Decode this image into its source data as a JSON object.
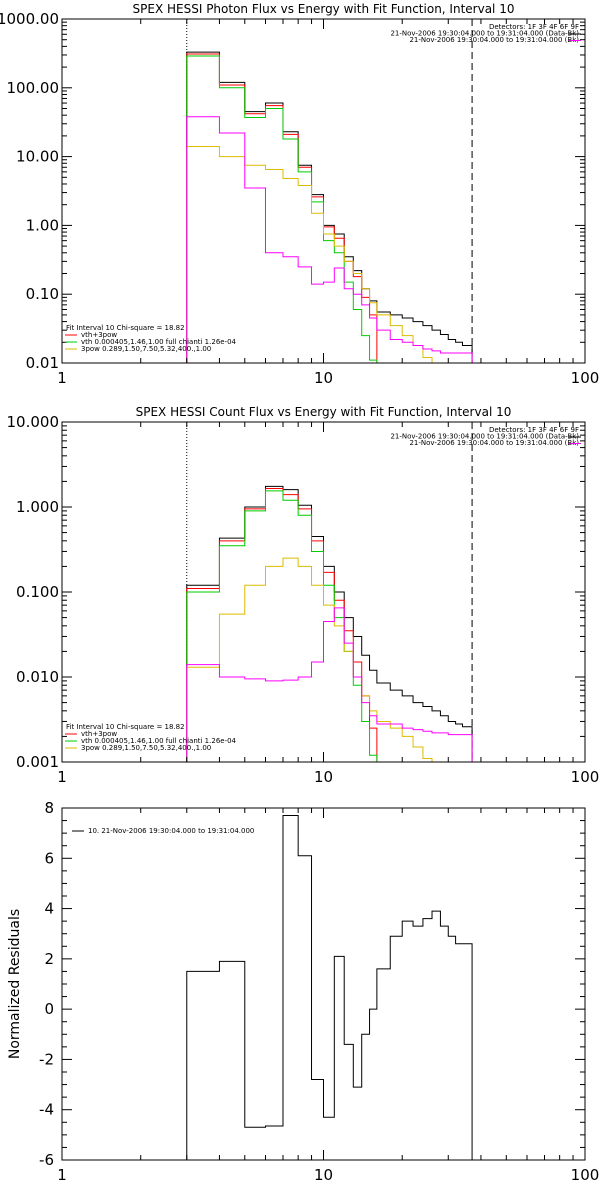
{
  "chart_data": [
    {
      "type": "line",
      "title": "SPEX HESSI Photon Flux vs Energy with Fit Function, Interval 10",
      "xlabel": "",
      "ylabel": "",
      "xscale": "log",
      "yscale": "log",
      "xlim": [
        1,
        100
      ],
      "ylim": [
        0.01,
        1000
      ],
      "x_tick_labels": [
        "1",
        "10",
        "100"
      ],
      "y_tick_labels": [
        "0.01",
        "0.10",
        "1.00",
        "10.00",
        "100.00",
        "1000.00"
      ],
      "vlines": [
        {
          "x": 3,
          "style": "dotted"
        },
        {
          "x": 37,
          "style": "dashed"
        }
      ],
      "header_lines": [
        "Detectors: 1F 3F 4F 6F 9F",
        "21-Nov-2006 19:30:04.000 to 19:31:04.000 (Data-Bk)",
        "21-Nov-2006 19:30:04.000 to 19:31:04.000 (Bk)"
      ],
      "legend_lines": [
        "Fit Interval 10   Chi-square = 18.82",
        "vth+3pow",
        "vth 0.000405,1.46,1.00   full chianti 1.26e-04",
        "3pow 0.289,1.50,7.50,5.32,400.,1.00"
      ],
      "series": [
        {
          "name": "",
          "color": "#000000",
          "edges": [
            3,
            4,
            5,
            6,
            7,
            8,
            9,
            10,
            11,
            12,
            13,
            14,
            15,
            16,
            18,
            20,
            22,
            24,
            26,
            28,
            30,
            32,
            34,
            37
          ],
          "values": [
            330,
            120,
            45,
            60,
            23,
            7.5,
            2.8,
            1.0,
            0.75,
            0.35,
            0.22,
            0.12,
            0.08,
            0.055,
            0.05,
            0.045,
            0.04,
            0.035,
            0.03,
            0.026,
            0.022,
            0.02,
            0.018
          ]
        },
        {
          "name": "",
          "color": "#ff0000",
          "edges": [
            3,
            4,
            5,
            6,
            7,
            8,
            9,
            10,
            11,
            12,
            13,
            14,
            15,
            16
          ],
          "values": [
            310,
            110,
            42,
            55,
            21,
            7.0,
            2.6,
            0.95,
            0.65,
            0.3,
            0.18,
            0.09,
            0.05
          ]
        },
        {
          "name": "",
          "color": "#00cc00",
          "edges": [
            3,
            4,
            5,
            6,
            7,
            8,
            9,
            10,
            11,
            12,
            13,
            14,
            15,
            16
          ],
          "values": [
            290,
            100,
            37,
            50,
            18,
            6.0,
            2.2,
            0.6,
            0.4,
            0.15,
            0.06,
            0.025,
            0.011
          ]
        },
        {
          "name": "",
          "color": "#ddbb00",
          "edges": [
            3,
            4,
            5,
            6,
            7,
            8,
            9,
            10,
            11,
            12,
            13,
            14,
            15,
            16,
            18,
            20,
            22,
            24,
            26
          ],
          "values": [
            14,
            10,
            7.5,
            6.5,
            4.8,
            3.8,
            1.5,
            0.75,
            0.5,
            0.3,
            0.2,
            0.12,
            0.075,
            0.05,
            0.035,
            0.025,
            0.018,
            0.012
          ]
        },
        {
          "name": "",
          "color": "#ff00ff",
          "edges": [
            3,
            4,
            5,
            6,
            7,
            8,
            9,
            10,
            11,
            12,
            13,
            14,
            15,
            16,
            18,
            20,
            22,
            24,
            26,
            28,
            30,
            32,
            34,
            37
          ],
          "values": [
            38,
            22,
            3.5,
            0.4,
            0.35,
            0.25,
            0.14,
            0.15,
            0.24,
            0.12,
            0.1,
            0.07,
            0.045,
            0.03,
            0.022,
            0.02,
            0.018,
            0.016,
            0.015,
            0.014,
            0.014,
            0.014,
            0.014
          ]
        }
      ]
    },
    {
      "type": "line",
      "title": "SPEX HESSI Count Flux vs Energy with Fit Function, Interval 10",
      "xlabel": "",
      "ylabel": "",
      "xscale": "log",
      "yscale": "log",
      "xlim": [
        1,
        100
      ],
      "ylim": [
        0.001,
        10
      ],
      "x_tick_labels": [
        "1",
        "10",
        "100"
      ],
      "y_tick_labels": [
        "0.001",
        "0.010",
        "0.100",
        "1.000",
        "10.000"
      ],
      "vlines": [
        {
          "x": 3,
          "style": "dotted"
        },
        {
          "x": 37,
          "style": "dashed"
        }
      ],
      "header_lines": [
        "Detectors: 1F 3F 4F 6F 9F",
        "21-Nov-2006 19:30:04.000 to 19:31:04.000 (Data-Bk)",
        "21-Nov-2006 19:30:04.000 to 19:31:04.000 (Bk)"
      ],
      "legend_lines": [
        "Fit Interval 10   Chi-square = 18.82",
        "vth+3pow",
        "vth 0.000405,1.46,1.00   full chianti 1.26e-04",
        "3pow 0.289,1.50,7.50,5.32,400.,1.00"
      ],
      "series": [
        {
          "name": "",
          "color": "#000000",
          "edges": [
            3,
            4,
            5,
            6,
            7,
            8,
            9,
            10,
            11,
            12,
            13,
            14,
            15,
            16,
            18,
            20,
            22,
            24,
            26,
            28,
            30,
            32,
            34,
            37
          ],
          "values": [
            0.12,
            0.43,
            1.0,
            1.75,
            1.6,
            1.05,
            0.45,
            0.2,
            0.1,
            0.05,
            0.03,
            0.018,
            0.012,
            0.0085,
            0.007,
            0.006,
            0.005,
            0.0045,
            0.004,
            0.0035,
            0.003,
            0.0028,
            0.0026
          ]
        },
        {
          "name": "",
          "color": "#ff0000",
          "edges": [
            3,
            4,
            5,
            6,
            7,
            8,
            9,
            10,
            11,
            12,
            13,
            14,
            15,
            16
          ],
          "values": [
            0.11,
            0.4,
            0.95,
            1.65,
            1.4,
            0.95,
            0.4,
            0.17,
            0.08,
            0.035,
            0.015,
            0.006,
            0.0025
          ]
        },
        {
          "name": "",
          "color": "#00cc00",
          "edges": [
            3,
            4,
            5,
            6,
            7,
            8,
            9,
            10,
            11,
            12,
            13,
            14,
            15,
            16
          ],
          "values": [
            0.1,
            0.35,
            0.9,
            1.55,
            1.2,
            0.8,
            0.3,
            0.12,
            0.05,
            0.02,
            0.008,
            0.003,
            0.0012
          ]
        },
        {
          "name": "",
          "color": "#ddbb00",
          "edges": [
            3,
            4,
            5,
            6,
            7,
            8,
            9,
            10,
            11,
            12,
            13,
            14,
            15,
            16,
            18,
            20,
            22,
            24,
            26
          ],
          "values": [
            0.013,
            0.055,
            0.12,
            0.2,
            0.25,
            0.2,
            0.12,
            0.07,
            0.04,
            0.02,
            0.01,
            0.006,
            0.004,
            0.003,
            0.0025,
            0.002,
            0.0015,
            0.0011
          ]
        },
        {
          "name": "",
          "color": "#ff00ff",
          "edges": [
            3,
            4,
            5,
            6,
            7,
            8,
            9,
            10,
            11,
            12,
            13,
            14,
            15,
            16,
            18,
            20,
            22,
            24,
            26,
            28,
            30,
            32,
            34,
            37
          ],
          "values": [
            0.014,
            0.01,
            0.0095,
            0.009,
            0.0092,
            0.01,
            0.015,
            0.045,
            0.065,
            0.025,
            0.01,
            0.005,
            0.0035,
            0.0028,
            0.0028,
            0.0025,
            0.0024,
            0.0023,
            0.0022,
            0.0022,
            0.0021,
            0.0021,
            0.0021
          ]
        }
      ]
    },
    {
      "type": "line",
      "title": "",
      "xlabel": "",
      "ylabel": "Normalized Residuals",
      "xscale": "log",
      "yscale": "linear",
      "xlim": [
        1,
        100
      ],
      "ylim": [
        -6,
        8
      ],
      "x_tick_labels": [
        "1",
        "10",
        "100"
      ],
      "y_tick_labels": [
        "-6",
        "-4",
        "-2",
        "0",
        "2",
        "4",
        "6",
        "8"
      ],
      "y_ticks": [
        -6,
        -4,
        -2,
        0,
        2,
        4,
        6,
        8
      ],
      "vlines": [],
      "header_lines": [],
      "legend_lines": [
        "10. 21-Nov-2006 19:30:04.000 to 19:31:04.000"
      ],
      "series": [
        {
          "name": "10. 21-Nov-2006 19:30:04.000 to 19:31:04.000",
          "color": "#000000",
          "edges": [
            3,
            4,
            5,
            6,
            7,
            8,
            9,
            10,
            11,
            12,
            13,
            14,
            15,
            16,
            18,
            20,
            22,
            24,
            26,
            28,
            30,
            32,
            34,
            37
          ],
          "values": [
            1.5,
            1.9,
            -4.7,
            -4.65,
            7.7,
            6.1,
            -2.8,
            -4.3,
            2.1,
            -1.4,
            -3.1,
            -1.0,
            0.0,
            1.6,
            2.9,
            3.5,
            3.3,
            3.6,
            3.9,
            3.3,
            2.9,
            2.6,
            2.6
          ]
        }
      ]
    }
  ]
}
